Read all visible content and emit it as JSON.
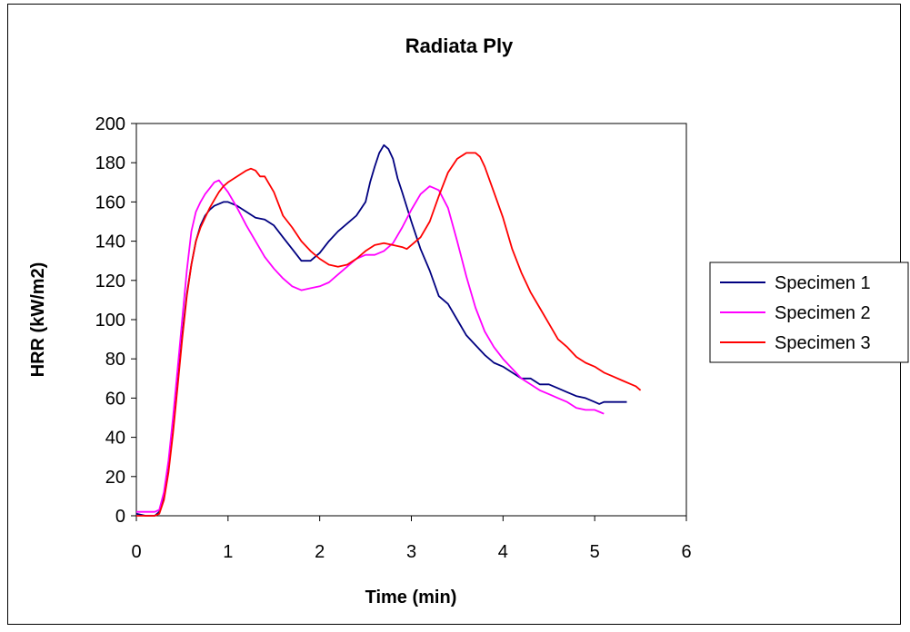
{
  "chart_data": {
    "type": "line",
    "title": "Radiata Ply",
    "xlabel": "Time (min)",
    "ylabel": "HRR (kW/m2)",
    "xlim": [
      0,
      6
    ],
    "ylim": [
      0,
      200
    ],
    "xticks": [
      "0",
      "1",
      "2",
      "3",
      "4",
      "5",
      "6"
    ],
    "yticks": [
      "0",
      "20",
      "40",
      "60",
      "80",
      "100",
      "120",
      "140",
      "160",
      "180",
      "200"
    ],
    "grid": false,
    "legend_position": "right",
    "series": [
      {
        "name": "Specimen 1",
        "color": "#000080",
        "points": [
          [
            0,
            1
          ],
          [
            0.1,
            0
          ],
          [
            0.2,
            0
          ],
          [
            0.25,
            2
          ],
          [
            0.3,
            10
          ],
          [
            0.35,
            25
          ],
          [
            0.4,
            45
          ],
          [
            0.45,
            68
          ],
          [
            0.5,
            92
          ],
          [
            0.55,
            113
          ],
          [
            0.6,
            128
          ],
          [
            0.65,
            140
          ],
          [
            0.7,
            148
          ],
          [
            0.75,
            153
          ],
          [
            0.8,
            156
          ],
          [
            0.85,
            158
          ],
          [
            0.9,
            159
          ],
          [
            0.95,
            160
          ],
          [
            1.0,
            160
          ],
          [
            1.1,
            158
          ],
          [
            1.2,
            155
          ],
          [
            1.3,
            152
          ],
          [
            1.4,
            151
          ],
          [
            1.5,
            148
          ],
          [
            1.6,
            142
          ],
          [
            1.7,
            136
          ],
          [
            1.8,
            130
          ],
          [
            1.9,
            130
          ],
          [
            2.0,
            134
          ],
          [
            2.1,
            140
          ],
          [
            2.2,
            145
          ],
          [
            2.3,
            149
          ],
          [
            2.4,
            153
          ],
          [
            2.5,
            160
          ],
          [
            2.55,
            170
          ],
          [
            2.6,
            178
          ],
          [
            2.65,
            185
          ],
          [
            2.7,
            189
          ],
          [
            2.75,
            187
          ],
          [
            2.8,
            182
          ],
          [
            2.85,
            172
          ],
          [
            2.9,
            165
          ],
          [
            3.0,
            150
          ],
          [
            3.1,
            136
          ],
          [
            3.2,
            125
          ],
          [
            3.3,
            112
          ],
          [
            3.4,
            108
          ],
          [
            3.5,
            100
          ],
          [
            3.6,
            92
          ],
          [
            3.7,
            87
          ],
          [
            3.8,
            82
          ],
          [
            3.9,
            78
          ],
          [
            4.0,
            76
          ],
          [
            4.1,
            73
          ],
          [
            4.2,
            70
          ],
          [
            4.3,
            70
          ],
          [
            4.4,
            67
          ],
          [
            4.5,
            67
          ],
          [
            4.6,
            65
          ],
          [
            4.7,
            63
          ],
          [
            4.8,
            61
          ],
          [
            4.9,
            60
          ],
          [
            5.0,
            58
          ],
          [
            5.05,
            57
          ],
          [
            5.1,
            58
          ],
          [
            5.2,
            58
          ],
          [
            5.3,
            58
          ],
          [
            5.35,
            58
          ]
        ]
      },
      {
        "name": "Specimen 2",
        "color": "#ff00ff",
        "points": [
          [
            0,
            2
          ],
          [
            0.1,
            2
          ],
          [
            0.2,
            2
          ],
          [
            0.25,
            3
          ],
          [
            0.3,
            12
          ],
          [
            0.35,
            28
          ],
          [
            0.4,
            50
          ],
          [
            0.45,
            75
          ],
          [
            0.5,
            100
          ],
          [
            0.55,
            125
          ],
          [
            0.6,
            145
          ],
          [
            0.65,
            155
          ],
          [
            0.7,
            160
          ],
          [
            0.75,
            164
          ],
          [
            0.8,
            167
          ],
          [
            0.85,
            170
          ],
          [
            0.9,
            171
          ],
          [
            0.95,
            168
          ],
          [
            1.0,
            165
          ],
          [
            1.1,
            157
          ],
          [
            1.2,
            148
          ],
          [
            1.3,
            140
          ],
          [
            1.4,
            132
          ],
          [
            1.5,
            126
          ],
          [
            1.6,
            121
          ],
          [
            1.7,
            117
          ],
          [
            1.8,
            115
          ],
          [
            1.9,
            116
          ],
          [
            2.0,
            117
          ],
          [
            2.1,
            119
          ],
          [
            2.2,
            123
          ],
          [
            2.3,
            127
          ],
          [
            2.4,
            131
          ],
          [
            2.5,
            133
          ],
          [
            2.6,
            133
          ],
          [
            2.7,
            135
          ],
          [
            2.8,
            139
          ],
          [
            2.9,
            147
          ],
          [
            3.0,
            156
          ],
          [
            3.1,
            164
          ],
          [
            3.2,
            168
          ],
          [
            3.3,
            166
          ],
          [
            3.4,
            157
          ],
          [
            3.5,
            140
          ],
          [
            3.6,
            122
          ],
          [
            3.7,
            106
          ],
          [
            3.8,
            94
          ],
          [
            3.9,
            86
          ],
          [
            4.0,
            80
          ],
          [
            4.1,
            75
          ],
          [
            4.2,
            70
          ],
          [
            4.3,
            67
          ],
          [
            4.4,
            64
          ],
          [
            4.5,
            62
          ],
          [
            4.6,
            60
          ],
          [
            4.7,
            58
          ],
          [
            4.8,
            55
          ],
          [
            4.9,
            54
          ],
          [
            5.0,
            54
          ],
          [
            5.05,
            53
          ],
          [
            5.1,
            52
          ]
        ]
      },
      {
        "name": "Specimen 3",
        "color": "#ff0000",
        "points": [
          [
            0,
            0
          ],
          [
            0.1,
            0
          ],
          [
            0.2,
            0
          ],
          [
            0.25,
            1
          ],
          [
            0.3,
            8
          ],
          [
            0.35,
            22
          ],
          [
            0.4,
            42
          ],
          [
            0.45,
            66
          ],
          [
            0.5,
            90
          ],
          [
            0.55,
            112
          ],
          [
            0.6,
            128
          ],
          [
            0.65,
            140
          ],
          [
            0.7,
            147
          ],
          [
            0.75,
            152
          ],
          [
            0.8,
            157
          ],
          [
            0.85,
            161
          ],
          [
            0.9,
            165
          ],
          [
            0.95,
            168
          ],
          [
            1.0,
            170
          ],
          [
            1.1,
            173
          ],
          [
            1.2,
            176
          ],
          [
            1.25,
            177
          ],
          [
            1.3,
            176
          ],
          [
            1.35,
            173
          ],
          [
            1.4,
            173
          ],
          [
            1.5,
            165
          ],
          [
            1.6,
            153
          ],
          [
            1.7,
            147
          ],
          [
            1.8,
            140
          ],
          [
            1.9,
            135
          ],
          [
            2.0,
            131
          ],
          [
            2.1,
            128
          ],
          [
            2.2,
            127
          ],
          [
            2.3,
            128
          ],
          [
            2.4,
            131
          ],
          [
            2.5,
            135
          ],
          [
            2.6,
            138
          ],
          [
            2.7,
            139
          ],
          [
            2.8,
            138
          ],
          [
            2.9,
            137
          ],
          [
            2.95,
            136
          ],
          [
            3.0,
            138
          ],
          [
            3.1,
            142
          ],
          [
            3.2,
            150
          ],
          [
            3.3,
            163
          ],
          [
            3.4,
            175
          ],
          [
            3.5,
            182
          ],
          [
            3.6,
            185
          ],
          [
            3.7,
            185
          ],
          [
            3.75,
            183
          ],
          [
            3.8,
            178
          ],
          [
            3.9,
            165
          ],
          [
            4.0,
            152
          ],
          [
            4.1,
            136
          ],
          [
            4.2,
            124
          ],
          [
            4.3,
            114
          ],
          [
            4.4,
            106
          ],
          [
            4.5,
            98
          ],
          [
            4.6,
            90
          ],
          [
            4.7,
            86
          ],
          [
            4.8,
            81
          ],
          [
            4.9,
            78
          ],
          [
            5.0,
            76
          ],
          [
            5.1,
            73
          ],
          [
            5.2,
            71
          ],
          [
            5.3,
            69
          ],
          [
            5.4,
            67
          ],
          [
            5.45,
            66
          ],
          [
            5.5,
            64
          ]
        ]
      }
    ]
  }
}
